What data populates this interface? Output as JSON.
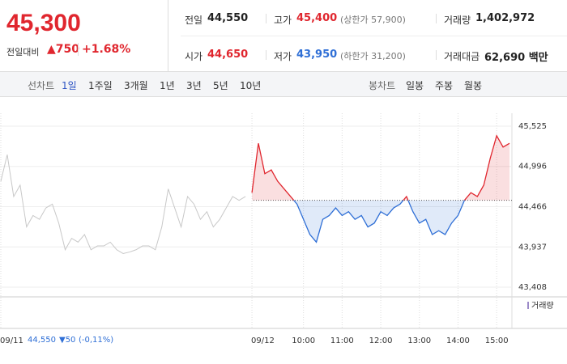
{
  "header": {
    "price": "45,300",
    "change_label": "전일대비",
    "change": "▲750",
    "change_pct": "+1.68%",
    "stats": [
      {
        "label": "전일",
        "value": "44,550"
      },
      {
        "label": "고가",
        "value": "45,400",
        "note": "(상한가 57,900)"
      },
      {
        "label": "거래량",
        "value": "1,402,972"
      },
      {
        "label": "시가",
        "value": "44,650"
      },
      {
        "label": "저가",
        "value": "43,950",
        "note": "(하한가 31,200)"
      },
      {
        "label": "거래대금",
        "value": "62,690 백만"
      }
    ]
  },
  "tabs": {
    "line_label": "선차트",
    "line": [
      "1일",
      "1주일",
      "3개월",
      "1년",
      "3년",
      "5년",
      "10년"
    ],
    "candle_label": "봉차트",
    "candle": [
      "일봉",
      "주봉",
      "월봉"
    ]
  },
  "footer": {
    "price": "44,550",
    "change": "▼50",
    "pct": "(-0,11%)"
  },
  "chart_data": {
    "type": "line",
    "legend": "거래량",
    "reference": 44550,
    "ylim": [
      43408,
      45525
    ],
    "yticks": [
      {
        "value": 45525,
        "label": "45,525"
      },
      {
        "value": 44996,
        "label": "44,996"
      },
      {
        "value": 44466,
        "label": "44,466"
      },
      {
        "value": 43937,
        "label": "43,937"
      },
      {
        "value": 43408,
        "label": "43,408"
      }
    ],
    "grid": true,
    "categories": [
      "09/11",
      null,
      null,
      null,
      null,
      null,
      null,
      null,
      null,
      null,
      null,
      null,
      null,
      null,
      null,
      null,
      null,
      null,
      null,
      null,
      null,
      null,
      null,
      null,
      null,
      null,
      null,
      null,
      null,
      null,
      null,
      null,
      null,
      null,
      null,
      null,
      null,
      null,
      null,
      "09/12",
      null,
      null,
      null,
      null,
      null,
      null,
      null,
      "10:00",
      null,
      null,
      null,
      null,
      null,
      "11:00",
      null,
      null,
      null,
      null,
      null,
      "12:00",
      null,
      null,
      null,
      null,
      null,
      "13:00",
      null,
      null,
      null,
      null,
      null,
      "14:00",
      null,
      null,
      null,
      null,
      null,
      "15:00",
      null,
      null
    ],
    "series": [
      {
        "color": "#c8c8c8",
        "values": [
          44800,
          45150,
          44600,
          44750,
          44200,
          44350,
          44300,
          44450,
          44500,
          44250,
          43900,
          44050,
          44000,
          44100,
          43900,
          43950,
          43950,
          44000,
          43900,
          43850,
          43870,
          43900,
          43950,
          43950,
          43900,
          44200,
          44700,
          44450,
          44200,
          44600,
          44500,
          44300,
          44400,
          44200,
          44300,
          44450,
          44600,
          44550,
          44600,
          null,
          null,
          null,
          null,
          null,
          null,
          null,
          null,
          null,
          null,
          null,
          null,
          null,
          null,
          null,
          null,
          null,
          null,
          null,
          null,
          null,
          null,
          null,
          null,
          null,
          null,
          null,
          null,
          null,
          null,
          null,
          null,
          null,
          null,
          null,
          null,
          null,
          null,
          null,
          null,
          null
        ]
      },
      {
        "color": "#e0262e",
        "color_down": "#2f6fd6",
        "values": [
          null,
          null,
          null,
          null,
          null,
          null,
          null,
          null,
          null,
          null,
          null,
          null,
          null,
          null,
          null,
          null,
          null,
          null,
          null,
          null,
          null,
          null,
          null,
          null,
          null,
          null,
          null,
          null,
          null,
          null,
          null,
          null,
          null,
          null,
          null,
          null,
          null,
          null,
          null,
          44650,
          45300,
          44900,
          44950,
          44800,
          44700,
          44600,
          44500,
          44300,
          44100,
          44000,
          44300,
          44350,
          44450,
          44350,
          44400,
          44300,
          44350,
          44200,
          44250,
          44400,
          44350,
          44450,
          44500,
          44600,
          44400,
          44250,
          44300,
          44100,
          44150,
          44100,
          44250,
          44350,
          44550,
          44650,
          44600,
          44750,
          45100,
          45400,
          45250,
          45300
        ]
      }
    ]
  }
}
